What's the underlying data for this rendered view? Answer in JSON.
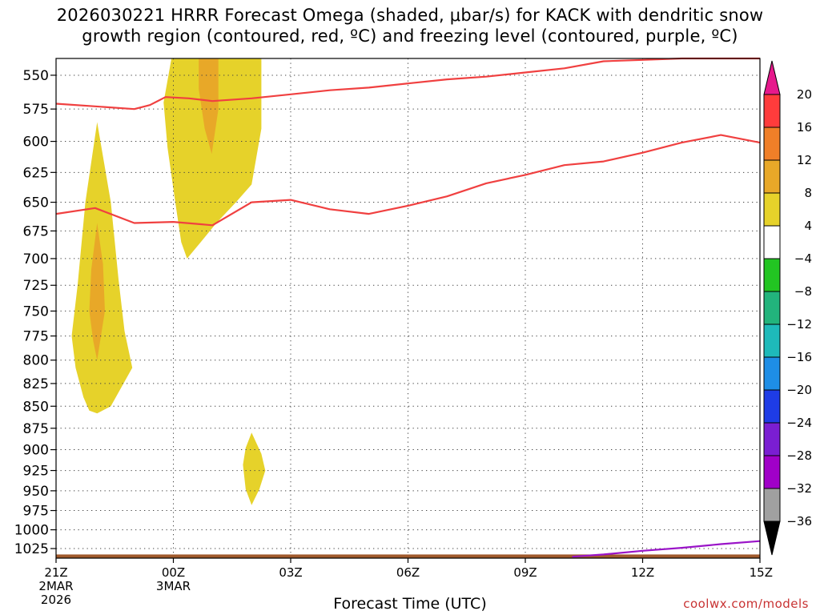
{
  "title_lines": [
    "2026030221 HRRR Forecast Omega (shaded, μbar/s) for KACK with dendritic snow",
    "growth region (contoured, red, ºC) and freezing level (contoured, purple, ºC)"
  ],
  "credit": "coolwx.com/models",
  "chart_data": {
    "type": "heatmap",
    "title": "2026030221 HRRR Forecast Omega (shaded, μbar/s) for KACK with dendritic snow growth region (contoured, red, ºC) and freezing level (contoured, purple, ºC)",
    "xlabel": "Forecast Time (UTC)",
    "ylabel": "",
    "xlim": [
      0,
      18
    ],
    "ylim": [
      1038,
      538
    ],
    "yscale": "log",
    "y_ticks": [
      550,
      575,
      600,
      625,
      650,
      675,
      700,
      725,
      750,
      775,
      800,
      825,
      850,
      875,
      900,
      925,
      950,
      975,
      1000,
      1025
    ],
    "x_ticks": [
      {
        "x": 0,
        "label": "21Z",
        "line2": "2MAR",
        "line3": "2026"
      },
      {
        "x": 3,
        "label": "00Z",
        "line2": "3MAR",
        "line3": ""
      },
      {
        "x": 6,
        "label": "03Z",
        "line2": "",
        "line3": ""
      },
      {
        "x": 9,
        "label": "06Z",
        "line2": "",
        "line3": ""
      },
      {
        "x": 12,
        "label": "09Z",
        "line2": "",
        "line3": ""
      },
      {
        "x": 15,
        "label": "12Z",
        "line2": "",
        "line3": ""
      },
      {
        "x": 18,
        "label": "15Z",
        "line2": "",
        "line3": ""
      }
    ],
    "grid": true,
    "colorbar": {
      "labels": [
        "20",
        "16",
        "12",
        "8",
        "4",
        "−4",
        "−8",
        "−12",
        "−16",
        "−20",
        "−24",
        "−28",
        "−32",
        "−36"
      ],
      "colors": [
        "#ff3c3c",
        "#f07f28",
        "#e8a828",
        "#e6d22a",
        "#ffffff",
        "#22c522",
        "#22b47c",
        "#1ebaba",
        "#1e8ee6",
        "#1e3ce6",
        "#7a1ed2",
        "#a000c8",
        "#a0a0a0"
      ],
      "top_color": "#e6198c",
      "bottom_color": "#000000"
    },
    "shaded_regions": [
      {
        "name": "omega 4-8",
        "color": "#e6d22a",
        "points": [
          [
            0.85,
            855
          ],
          [
            1.05,
            858
          ],
          [
            1.4,
            850
          ],
          [
            1.95,
            808
          ],
          [
            1.75,
            770
          ],
          [
            1.6,
            720
          ],
          [
            1.4,
            650
          ],
          [
            1.05,
            585
          ],
          [
            0.75,
            650
          ],
          [
            0.55,
            725
          ],
          [
            0.4,
            775
          ],
          [
            0.5,
            808
          ],
          [
            0.7,
            840
          ]
        ]
      },
      {
        "name": "omega 8-12",
        "color": "#e8a828",
        "points": [
          [
            1.05,
            800
          ],
          [
            1.25,
            750
          ],
          [
            1.2,
            705
          ],
          [
            1.05,
            668
          ],
          [
            0.9,
            710
          ],
          [
            0.85,
            750
          ],
          [
            0.95,
            780
          ]
        ]
      },
      {
        "name": "omega 4-8",
        "color": "#e6d22a",
        "points": [
          [
            2.95,
            538
          ],
          [
            5.25,
            538
          ],
          [
            5.25,
            590
          ],
          [
            5.0,
            635
          ],
          [
            4.6,
            650
          ],
          [
            4.1,
            668
          ],
          [
            3.7,
            685
          ],
          [
            3.35,
            700
          ],
          [
            3.2,
            685
          ],
          [
            3.05,
            650
          ],
          [
            2.85,
            605
          ],
          [
            2.75,
            570
          ]
        ]
      },
      {
        "name": "omega 8-12",
        "color": "#e8a828",
        "points": [
          [
            3.65,
            538
          ],
          [
            4.15,
            538
          ],
          [
            4.15,
            575
          ],
          [
            3.98,
            610
          ],
          [
            3.8,
            590
          ],
          [
            3.65,
            560
          ]
        ]
      },
      {
        "name": "omega 4-8",
        "color": "#e6d22a",
        "points": [
          [
            5.0,
            880
          ],
          [
            5.25,
            905
          ],
          [
            5.35,
            925
          ],
          [
            5.2,
            948
          ],
          [
            5.0,
            968
          ],
          [
            4.85,
            948
          ],
          [
            4.78,
            918
          ],
          [
            4.85,
            898
          ]
        ]
      }
    ],
    "series": [
      {
        "name": "dendritic snow growth region",
        "color": "#f04040",
        "points": [
          [
            0,
            571
          ],
          [
            1,
            573
          ],
          [
            2,
            575
          ],
          [
            2.4,
            572
          ],
          [
            2.8,
            566
          ],
          [
            3.4,
            567
          ],
          [
            4,
            569
          ],
          [
            5,
            567
          ],
          [
            6,
            564
          ],
          [
            7,
            561
          ],
          [
            8,
            559
          ],
          [
            9,
            556
          ],
          [
            10,
            553
          ],
          [
            11,
            551
          ],
          [
            12,
            548
          ],
          [
            13,
            545
          ],
          [
            14,
            540
          ],
          [
            15,
            539
          ],
          [
            16,
            538
          ],
          [
            17,
            538
          ],
          [
            18,
            538
          ]
        ]
      },
      {
        "name": "dendritic snow growth region",
        "color": "#f04040",
        "points": [
          [
            0,
            660
          ],
          [
            1,
            655
          ],
          [
            2,
            668
          ],
          [
            3,
            667
          ],
          [
            4,
            670
          ],
          [
            5,
            650
          ],
          [
            6,
            648
          ],
          [
            7,
            656
          ],
          [
            8,
            660
          ],
          [
            9,
            653
          ],
          [
            10,
            645
          ],
          [
            11,
            634
          ],
          [
            12,
            627
          ],
          [
            13,
            619
          ],
          [
            14,
            616
          ],
          [
            15,
            609
          ],
          [
            16,
            601
          ],
          [
            17,
            595
          ],
          [
            18,
            601
          ]
        ]
      },
      {
        "name": "freezing level",
        "color": "#9a14c8",
        "points": [
          [
            13.2,
            1036
          ],
          [
            14.0,
            1033
          ],
          [
            15.0,
            1028
          ],
          [
            16.0,
            1024
          ],
          [
            17.0,
            1019
          ],
          [
            18.0,
            1015
          ]
        ]
      }
    ],
    "terrain": {
      "color": "#a05a2c",
      "top_pressure": 1033
    }
  }
}
